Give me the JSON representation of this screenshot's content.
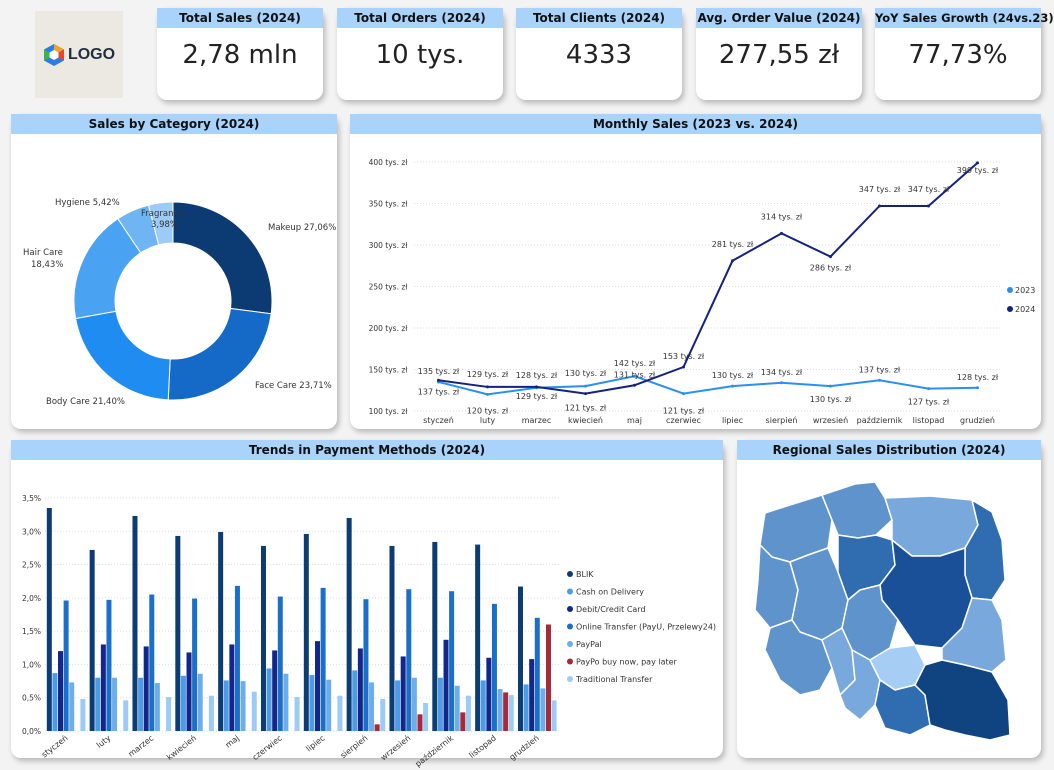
{
  "logo": {
    "text": "LOGO"
  },
  "kpis": [
    {
      "title": "Total Sales (2024)",
      "value": "2,78 mln"
    },
    {
      "title": "Total Orders (2024)",
      "value": "10 tys."
    },
    {
      "title": "Total Clients (2024)",
      "value": "4333"
    },
    {
      "title": "Avg. Order Value (2024)",
      "value": "277,55 zł"
    },
    {
      "title": "YoY Sales Growth (24vs.23)",
      "value": "77,73%"
    }
  ],
  "donut": {
    "title": "Sales by Category (2024)"
  },
  "line": {
    "title": "Monthly Sales (2023 vs. 2024)"
  },
  "bars": {
    "title": "Trends in Payment Methods (2024)"
  },
  "map": {
    "title": "Regional Sales Distribution (2024)"
  },
  "colors": {
    "header": "#a9d3fb"
  },
  "chart_data": [
    {
      "type": "pie",
      "title": "Sales by Category (2024)",
      "categories": [
        "Makeup",
        "Face Care",
        "Body Care",
        "Hair Care",
        "Hygiene",
        "Fragrances"
      ],
      "values": [
        27.06,
        23.71,
        21.4,
        18.43,
        5.42,
        3.98
      ],
      "labels": [
        "Makeup 27,06%",
        "Face Care 23,71%",
        "Body Care 21,40%",
        "Hair Care 18,43%",
        "Hygiene 5,42%",
        "Fragrances 3,98%"
      ],
      "colors": [
        "#0c3b74",
        "#1569c7",
        "#1e8cf0",
        "#4aa3f2",
        "#6fb5f4",
        "#9ccbf7"
      ]
    },
    {
      "type": "line",
      "title": "Monthly Sales (2023 vs. 2024)",
      "categories": [
        "styczeń",
        "luty",
        "marzec",
        "kwiecień",
        "maj",
        "czerwiec",
        "lipiec",
        "sierpień",
        "wrzesień",
        "październik",
        "listopad",
        "grudzień"
      ],
      "yticks": [
        100,
        150,
        200,
        250,
        300,
        350,
        400
      ],
      "ytick_labels": [
        "100 tys. zł",
        "150 tys. zł",
        "200 tys. zł",
        "250 tys. zł",
        "300 tys. zł",
        "350 tys. zł",
        "400 tys. zł"
      ],
      "ylim": [
        100,
        400
      ],
      "legend": "right",
      "series": [
        {
          "name": "2023",
          "color": "#2a8ff0",
          "values": [
            135,
            120,
            128,
            130,
            142,
            121,
            130,
            134,
            130,
            137,
            127,
            128
          ],
          "labels": [
            "135 tys. zł",
            "120 tys. zł",
            "128 tys. zł",
            "130 tys. zł",
            "142 tys. zł",
            "121 tys. zł",
            "130 tys. zł",
            "134 tys. zł",
            "130 tys. zł",
            "137 tys. zł",
            "127 tys. zł",
            "128 tys. zł"
          ]
        },
        {
          "name": "2024",
          "color": "#14227e",
          "values": [
            137,
            129,
            129,
            121,
            131,
            153,
            281,
            314,
            286,
            347,
            347,
            399
          ],
          "labels": [
            "137 tys. zł",
            "129 tys. zł",
            "129 tys. zł",
            "121 tys. zł",
            "131 tys. zł",
            "153 tys. zł",
            "281 tys. zł",
            "314 tys. zł",
            "286 tys. zł",
            "347 tys. zł",
            "347 tys. zł",
            "399 tys. zł"
          ]
        }
      ]
    },
    {
      "type": "bar",
      "title": "Trends in Payment Methods (2024)",
      "categories": [
        "styczeń",
        "luty",
        "marzec",
        "kwiecień",
        "maj",
        "czerwiec",
        "lipiec",
        "sierpień",
        "wrzesień",
        "październik",
        "listopad",
        "grudzień"
      ],
      "yticks": [
        0,
        0.5,
        1,
        1.5,
        2,
        2.5,
        3,
        3.5
      ],
      "ytick_labels": [
        "0,0%",
        "0,5%",
        "1,0%",
        "1,5%",
        "2,0%",
        "2,5%",
        "3,0%",
        "3,5%"
      ],
      "ylim": [
        0,
        3.5
      ],
      "legend": "right",
      "series": [
        {
          "name": "BLIK",
          "color": "#0b3c73",
          "values": [
            3.35,
            2.72,
            3.23,
            2.93,
            2.99,
            2.78,
            2.96,
            3.2,
            2.78,
            2.84,
            2.8,
            2.17
          ]
        },
        {
          "name": "Cash on Delivery",
          "color": "#4c9be6",
          "values": [
            0.87,
            0.8,
            0.8,
            0.83,
            0.76,
            0.94,
            0.84,
            0.91,
            0.76,
            0.8,
            0.76,
            0.7
          ]
        },
        {
          "name": "Debit/Credit Card",
          "color": "#14268a",
          "values": [
            1.2,
            1.3,
            1.27,
            1.18,
            1.3,
            1.21,
            1.35,
            1.24,
            1.12,
            1.37,
            1.1,
            1.08
          ]
        },
        {
          "name": "Online Transfer (PayU, Przelewy24)",
          "color": "#1a6fc9",
          "values": [
            1.96,
            1.97,
            2.05,
            1.99,
            2.18,
            2.02,
            2.15,
            1.98,
            2.13,
            2.1,
            1.91,
            1.7
          ]
        },
        {
          "name": "PayPal",
          "color": "#6daeea",
          "values": [
            0.73,
            0.8,
            0.72,
            0.86,
            0.75,
            0.86,
            0.77,
            0.73,
            0.8,
            0.68,
            0.63,
            0.64
          ]
        },
        {
          "name": "PayPo buy now, pay later",
          "color": "#a52b3a",
          "values": [
            0,
            0,
            0,
            0,
            0,
            0,
            0,
            0.1,
            0.25,
            0.28,
            0.58,
            1.6
          ]
        },
        {
          "name": "Traditional Transfer",
          "color": "#9ccbf5",
          "values": [
            0.48,
            0.46,
            0.51,
            0.53,
            0.59,
            0.51,
            0.53,
            0.48,
            0.42,
            0.53,
            0.54,
            0.46
          ]
        }
      ]
    }
  ]
}
